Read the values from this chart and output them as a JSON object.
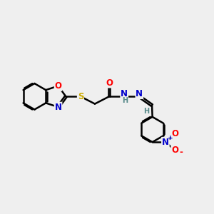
{
  "bg_color": "#efefef",
  "bond_color": "#000000",
  "bond_width": 1.8,
  "atom_colors": {
    "O": "#ff0000",
    "N": "#0000cc",
    "S": "#ccaa00",
    "H": "#558888"
  },
  "font_size": 8.5,
  "fig_size": [
    3.0,
    3.0
  ],
  "dpi": 100
}
